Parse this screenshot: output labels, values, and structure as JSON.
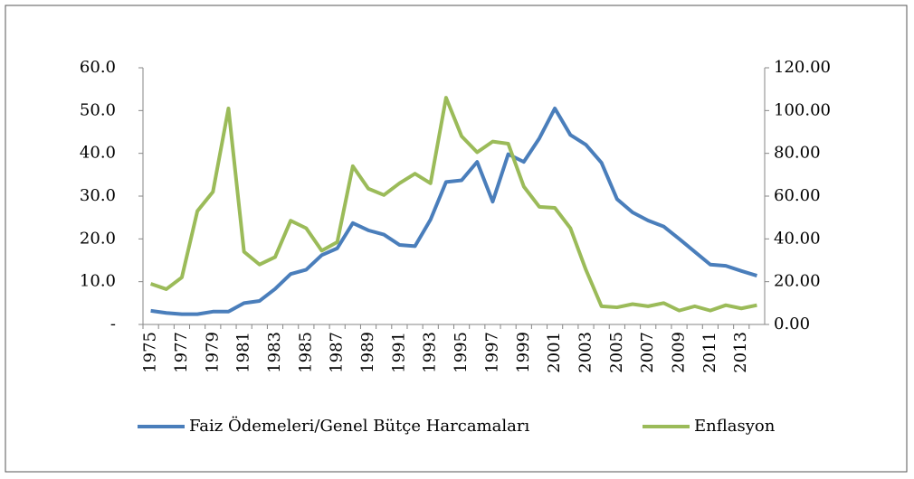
{
  "chart_data": {
    "type": "line",
    "categories": [
      "1975",
      null,
      "1977",
      null,
      "1979",
      null,
      "1981",
      null,
      "1983",
      null,
      "1985",
      null,
      "1987",
      null,
      "1989",
      null,
      "1991",
      null,
      "1993",
      null,
      "1995",
      null,
      "1997",
      null,
      "1999",
      null,
      "2001",
      null,
      "2003",
      null,
      "2005",
      null,
      "2007",
      null,
      "2009",
      null,
      "2011",
      null,
      "2013",
      null
    ],
    "series": [
      {
        "name": "Faiz Ödemeleri/Genel Bütçe Harcamaları",
        "color": "#4a7ebb",
        "axis": "y",
        "values": [
          3.2,
          2.7,
          2.4,
          2.4,
          3.0,
          3.0,
          5.0,
          5.5,
          8.3,
          11.8,
          12.8,
          16.2,
          17.8,
          23.7,
          22.0,
          21.0,
          18.6,
          18.3,
          24.5,
          33.3,
          33.7,
          38.0,
          28.7,
          39.8,
          38.0,
          43.5,
          50.5,
          44.3,
          42.0,
          37.8,
          29.3,
          26.2,
          24.3,
          22.9,
          20.0,
          17.0,
          14.0,
          13.7,
          12.5,
          11.4
        ]
      },
      {
        "name": "Enflasyon",
        "color": "#9bbb59",
        "axis": "y2",
        "values": [
          19,
          16.5,
          22,
          53,
          62,
          101,
          34,
          28,
          31.5,
          48.5,
          45,
          34.5,
          38.5,
          74,
          63.5,
          60.5,
          66,
          70.5,
          66,
          106,
          88,
          80.5,
          85.5,
          84.5,
          64.5,
          55,
          54.5,
          45,
          25.5,
          8.5,
          8,
          9.5,
          8.5,
          10,
          6.5,
          8.5,
          6.5,
          9,
          7.5,
          9
        ]
      }
    ],
    "ylim": [
      0,
      60
    ],
    "yticks": [
      {
        "value": 0,
        "label": "-"
      },
      {
        "value": 10,
        "label": "10.0"
      },
      {
        "value": 20,
        "label": "20.0"
      },
      {
        "value": 30,
        "label": "30.0"
      },
      {
        "value": 40,
        "label": "40.0"
      },
      {
        "value": 50,
        "label": "50.0"
      },
      {
        "value": 60,
        "label": "60.0"
      }
    ],
    "y2lim": [
      0,
      120
    ],
    "y2ticks": [
      {
        "value": 0,
        "label": "0.00"
      },
      {
        "value": 20,
        "label": "20.00"
      },
      {
        "value": 40,
        "label": "40.00"
      },
      {
        "value": 60,
        "label": "60.00"
      },
      {
        "value": 80,
        "label": "80.00"
      },
      {
        "value": 100,
        "label": "100.00"
      },
      {
        "value": 120,
        "label": "120.00"
      }
    ],
    "legend": "bottom"
  }
}
